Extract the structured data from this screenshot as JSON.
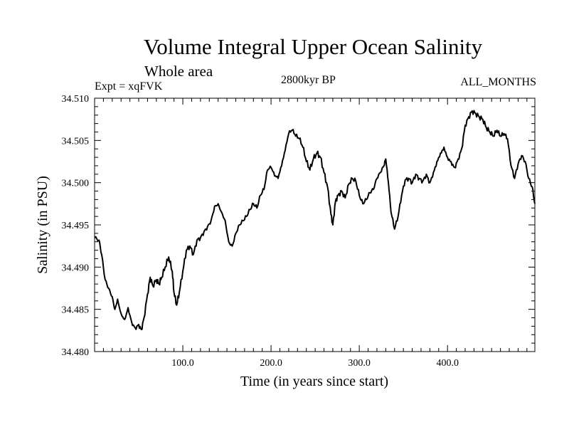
{
  "chart_data": {
    "type": "line",
    "title": "Volume Integral Upper Ocean Salinity",
    "subtitle": "Whole area",
    "experiment": "Expt = xqFVK",
    "period": "2800kyr BP",
    "months": "ALL_MONTHS",
    "xlabel": "Time (in years since start)",
    "ylabel": "Salinity (in PSU)",
    "xlim": [
      0,
      499
    ],
    "ylim": [
      34.48,
      34.51
    ],
    "xticks": [
      100,
      200,
      300,
      400
    ],
    "xtick_labels": [
      "100.0",
      "200.0",
      "300.0",
      "400.0"
    ],
    "yticks": [
      34.48,
      34.485,
      34.49,
      34.495,
      34.5,
      34.505,
      34.51
    ],
    "ytick_labels": [
      "34.480",
      "34.485",
      "34.490",
      "34.495",
      "34.500",
      "34.505",
      "34.510"
    ],
    "series": [
      {
        "name": "Salinity",
        "color": "#000000",
        "x": [
          0,
          5,
          8,
          12,
          16,
          20,
          23,
          26,
          30,
          34,
          38,
          42,
          46,
          50,
          53,
          56,
          60,
          63,
          66,
          70,
          73,
          76,
          80,
          84,
          88,
          90,
          93,
          96,
          100,
          104,
          108,
          112,
          116,
          120,
          124,
          128,
          132,
          136,
          140,
          144,
          148,
          152,
          156,
          160,
          164,
          168,
          172,
          176,
          180,
          184,
          188,
          192,
          196,
          200,
          204,
          208,
          212,
          216,
          220,
          224,
          228,
          232,
          236,
          240,
          244,
          248,
          252,
          256,
          260,
          264,
          268,
          270,
          273,
          276,
          280,
          284,
          288,
          292,
          296,
          300,
          304,
          308,
          312,
          316,
          320,
          324,
          328,
          330,
          333,
          336,
          340,
          344,
          348,
          352,
          356,
          360,
          364,
          368,
          372,
          376,
          380,
          384,
          388,
          392,
          396,
          400,
          404,
          408,
          412,
          416,
          420,
          424,
          428,
          432,
          436,
          440,
          444,
          448,
          452,
          456,
          460,
          464,
          468,
          472,
          476,
          480,
          484,
          488,
          492,
          496,
          499
        ],
        "values": [
          34.4935,
          34.4932,
          34.4915,
          34.4885,
          34.4875,
          34.4865,
          34.485,
          34.4862,
          34.4845,
          34.4838,
          34.4852,
          34.4835,
          34.4828,
          34.4832,
          34.4826,
          34.484,
          34.4868,
          34.4888,
          34.4878,
          34.4885,
          34.488,
          34.4888,
          34.49,
          34.4912,
          34.4895,
          34.487,
          34.4855,
          34.487,
          34.4895,
          34.492,
          34.4925,
          34.4915,
          34.4932,
          34.4935,
          34.4942,
          34.4948,
          34.4955,
          34.4972,
          34.4975,
          34.4965,
          34.4955,
          34.493,
          34.4925,
          34.494,
          34.495,
          34.4955,
          34.496,
          34.4968,
          34.4975,
          34.497,
          34.4985,
          34.4992,
          34.5015,
          34.5018,
          34.5008,
          34.5005,
          34.502,
          34.5038,
          34.5058,
          34.5062,
          34.5055,
          34.5052,
          34.5042,
          34.5025,
          34.5015,
          34.5028,
          34.5035,
          34.503,
          34.5012,
          34.4995,
          34.4962,
          34.495,
          34.4978,
          34.4985,
          34.499,
          34.4982,
          34.4998,
          34.5005,
          34.5002,
          34.4985,
          34.4975,
          34.498,
          34.4988,
          34.4992,
          34.5005,
          34.5012,
          34.502,
          34.5028,
          34.5,
          34.4965,
          34.4945,
          34.496,
          34.4985,
          34.5003,
          34.5005,
          34.5,
          34.501,
          34.5005,
          34.5002,
          34.501,
          34.5,
          34.5012,
          34.5025,
          34.5035,
          34.5042,
          34.503,
          34.5025,
          34.5018,
          34.5028,
          34.504,
          34.5068,
          34.5078,
          34.5085,
          34.5082,
          34.5078,
          34.5075,
          34.5065,
          34.506,
          34.5055,
          34.5062,
          34.5055,
          34.5058,
          34.5052,
          34.502,
          34.5005,
          34.5022,
          34.5032,
          34.5025,
          34.5005,
          34.4995,
          34.4975
        ]
      }
    ]
  }
}
